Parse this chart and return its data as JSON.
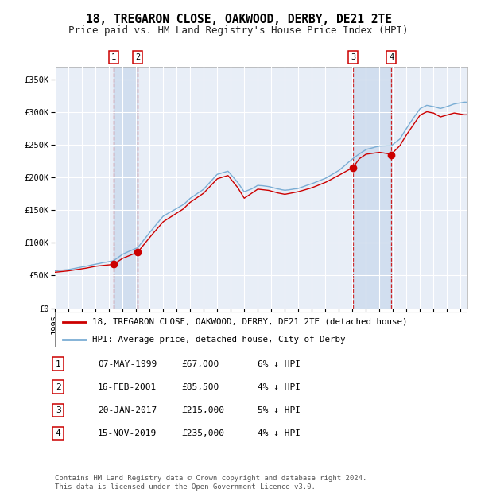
{
  "title": "18, TREGARON CLOSE, OAKWOOD, DERBY, DE21 2TE",
  "subtitle": "Price paid vs. HM Land Registry's House Price Index (HPI)",
  "xlim_start": 1995.0,
  "xlim_end": 2025.5,
  "ylim": [
    0,
    370000
  ],
  "yticks": [
    0,
    50000,
    100000,
    150000,
    200000,
    250000,
    300000,
    350000
  ],
  "ytick_labels": [
    "£0",
    "£50K",
    "£100K",
    "£150K",
    "£200K",
    "£250K",
    "£300K",
    "£350K"
  ],
  "background_color": "#ffffff",
  "plot_bg_color": "#e8eef7",
  "grid_color": "#ffffff",
  "transactions": [
    {
      "num": 1,
      "date_str": "07-MAY-1999",
      "year": 1999.35,
      "price": 67000,
      "pct": "6%",
      "dir": "↓"
    },
    {
      "num": 2,
      "date_str": "16-FEB-2001",
      "year": 2001.12,
      "price": 85500,
      "pct": "4%",
      "dir": "↓"
    },
    {
      "num": 3,
      "date_str": "20-JAN-2017",
      "year": 2017.05,
      "price": 215000,
      "pct": "5%",
      "dir": "↓"
    },
    {
      "num": 4,
      "date_str": "15-NOV-2019",
      "year": 2019.87,
      "price": 235000,
      "pct": "4%",
      "dir": "↓"
    }
  ],
  "legend_house_label": "18, TREGARON CLOSE, OAKWOOD, DERBY, DE21 2TE (detached house)",
  "legend_hpi_label": "HPI: Average price, detached house, City of Derby",
  "house_line_color": "#cc0000",
  "hpi_line_color": "#7aadd4",
  "marker_color": "#cc0000",
  "vline_color": "#cc0000",
  "shade_color": "#c8d8ed",
  "footer": "Contains HM Land Registry data © Crown copyright and database right 2024.\nThis data is licensed under the Open Government Licence v3.0.",
  "title_fontsize": 10.5,
  "subtitle_fontsize": 9,
  "tick_label_fontsize": 7.5,
  "legend_fontsize": 7.8,
  "table_fontsize": 8,
  "footer_fontsize": 6.5
}
